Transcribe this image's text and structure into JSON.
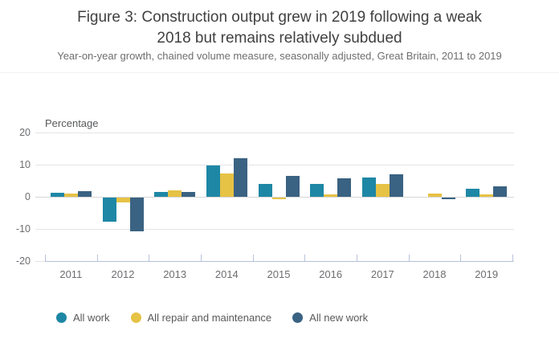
{
  "figure": {
    "title_lines": [
      "Figure 3: Construction output grew in 2019 following a weak",
      "2018 but remains relatively subdued"
    ],
    "subtitle": "Year-on-year growth, chained volume measure, seasonally adjusted, Great Britain, 2011 to 2019"
  },
  "chart_data": {
    "type": "bar",
    "title": "Figure 3: Construction output grew in 2019 following a weak 2018 but remains relatively subdued",
    "subtitle": "Year-on-year growth, chained volume measure, seasonally adjusted, Great Britain, 2011 to 2019",
    "ylabel": "Percentage",
    "xlabel": "",
    "categories": [
      "2011",
      "2012",
      "2013",
      "2014",
      "2015",
      "2016",
      "2017",
      "2018",
      "2019"
    ],
    "series": [
      {
        "name": "All work",
        "color": "#1e87a5",
        "values": [
          1.3,
          -7.5,
          1.6,
          9.8,
          4.0,
          3.9,
          6.0,
          0.1,
          2.5
        ]
      },
      {
        "name": "All repair and maintenance",
        "color": "#e6c245",
        "values": [
          0.9,
          -1.5,
          1.9,
          7.2,
          -0.5,
          0.7,
          3.9,
          1.1,
          0.7
        ]
      },
      {
        "name": "All new work",
        "color": "#3a6282",
        "values": [
          1.7,
          -10.6,
          1.4,
          11.9,
          6.4,
          5.8,
          7.0,
          -0.4,
          3.3
        ]
      }
    ],
    "yticks": [
      20,
      10,
      0,
      -10,
      -20
    ],
    "ylim": [
      -20,
      20
    ],
    "grid": true,
    "legend_position": "bottom",
    "colors": {
      "all_work": "#1e87a5",
      "all_repair_and_maintenance": "#e6c245",
      "all_new_work": "#3a6282",
      "axis": "#b6c1da",
      "gridline": "#e4e4e4",
      "title_text": "#414042",
      "axis_text": "#6d6e71"
    }
  }
}
